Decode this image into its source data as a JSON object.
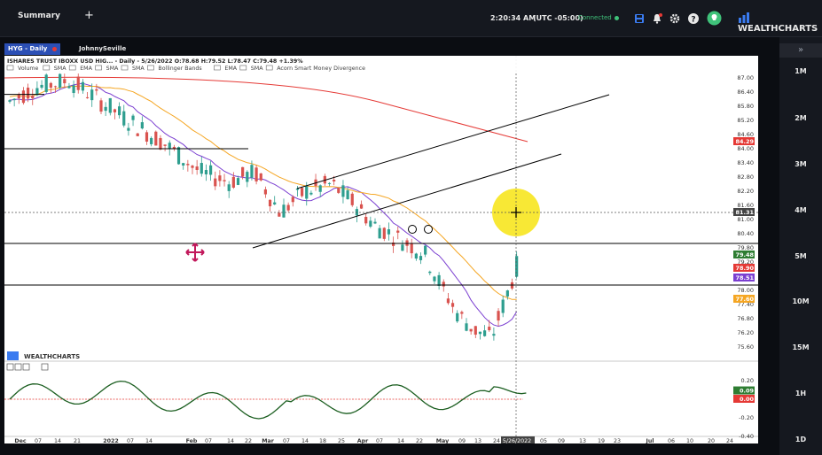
{
  "topbar": {
    "tab_label": "Summary",
    "add_tab": "+",
    "clock": "2:20:34 AM",
    "timezone": "(UTC -05:00)",
    "connection": "Connected",
    "brand": "WEALTHCHARTS"
  },
  "symbol": {
    "ticker": "HYG - Daily",
    "user": "JohnnySeville"
  },
  "chart": {
    "header": "ISHARES TRUST IBOXX USD HIG... - Daily - 5/26/2022 O:78.68 H:79.52 L:78.47 C:79.48 +1.39%",
    "indicators": [
      "Volume",
      "SMA",
      "EMA",
      "SMA",
      "SMA",
      "Bollinger Bands",
      "EMA",
      "SMA",
      "Acorn Smart Money Divergence"
    ],
    "watermark": "WEALTHCHARTS",
    "price_axis": [
      "87.00",
      "86.40",
      "85.80",
      "85.20",
      "84.60",
      "84.00",
      "83.40",
      "82.80",
      "82.20",
      "81.60",
      "81.00",
      "80.40",
      "79.80",
      "79.20",
      "78.60",
      "78.00",
      "77.40",
      "76.80",
      "76.20",
      "75.60"
    ],
    "price_tags": [
      {
        "label": "84.29",
        "color": "#e53935"
      },
      {
        "label": "81.31",
        "color": "#444444"
      },
      {
        "label": "79.48",
        "color": "#2e7d32"
      },
      {
        "label": "78.90",
        "color": "#e53935"
      },
      {
        "label": "78.51",
        "color": "#7b3fd1"
      },
      {
        "label": "77.60",
        "color": "#f5a623"
      }
    ],
    "osc_axis": [
      "0.20",
      "0.00",
      "-0.20",
      "-0.40"
    ],
    "osc_tags": [
      {
        "label": "0.09",
        "color": "#2e7d32"
      },
      {
        "label": "0.00",
        "color": "#e53935"
      }
    ],
    "date_axis": [
      "Dec",
      "07",
      "14",
      "21",
      "2022",
      "07",
      "14",
      "Feb",
      "07",
      "14",
      "22",
      "Mar",
      "07",
      "14",
      "18",
      "25",
      "Apr",
      "07",
      "14",
      "22",
      "May",
      "09",
      "13",
      "24",
      "5/26/2022",
      "05",
      "09",
      "13",
      "19",
      "23",
      "Jul",
      "06",
      "10",
      "20",
      "24"
    ],
    "cursor_date": "5/26/2022",
    "cursor_price": "81.31"
  },
  "timeframes": [
    "1M",
    "2M",
    "3M",
    "4M",
    "5M",
    "10M",
    "15M",
    "1H",
    "1D"
  ],
  "colors": {
    "candle_up": "#2e9e8f",
    "candle_down": "#d9534f",
    "sma_red": "#e53935",
    "ema_orange": "#f5a623",
    "ema_purple": "#7b3fd1",
    "osc_line": "#1b5e20",
    "highlight": "#f7e51f"
  }
}
